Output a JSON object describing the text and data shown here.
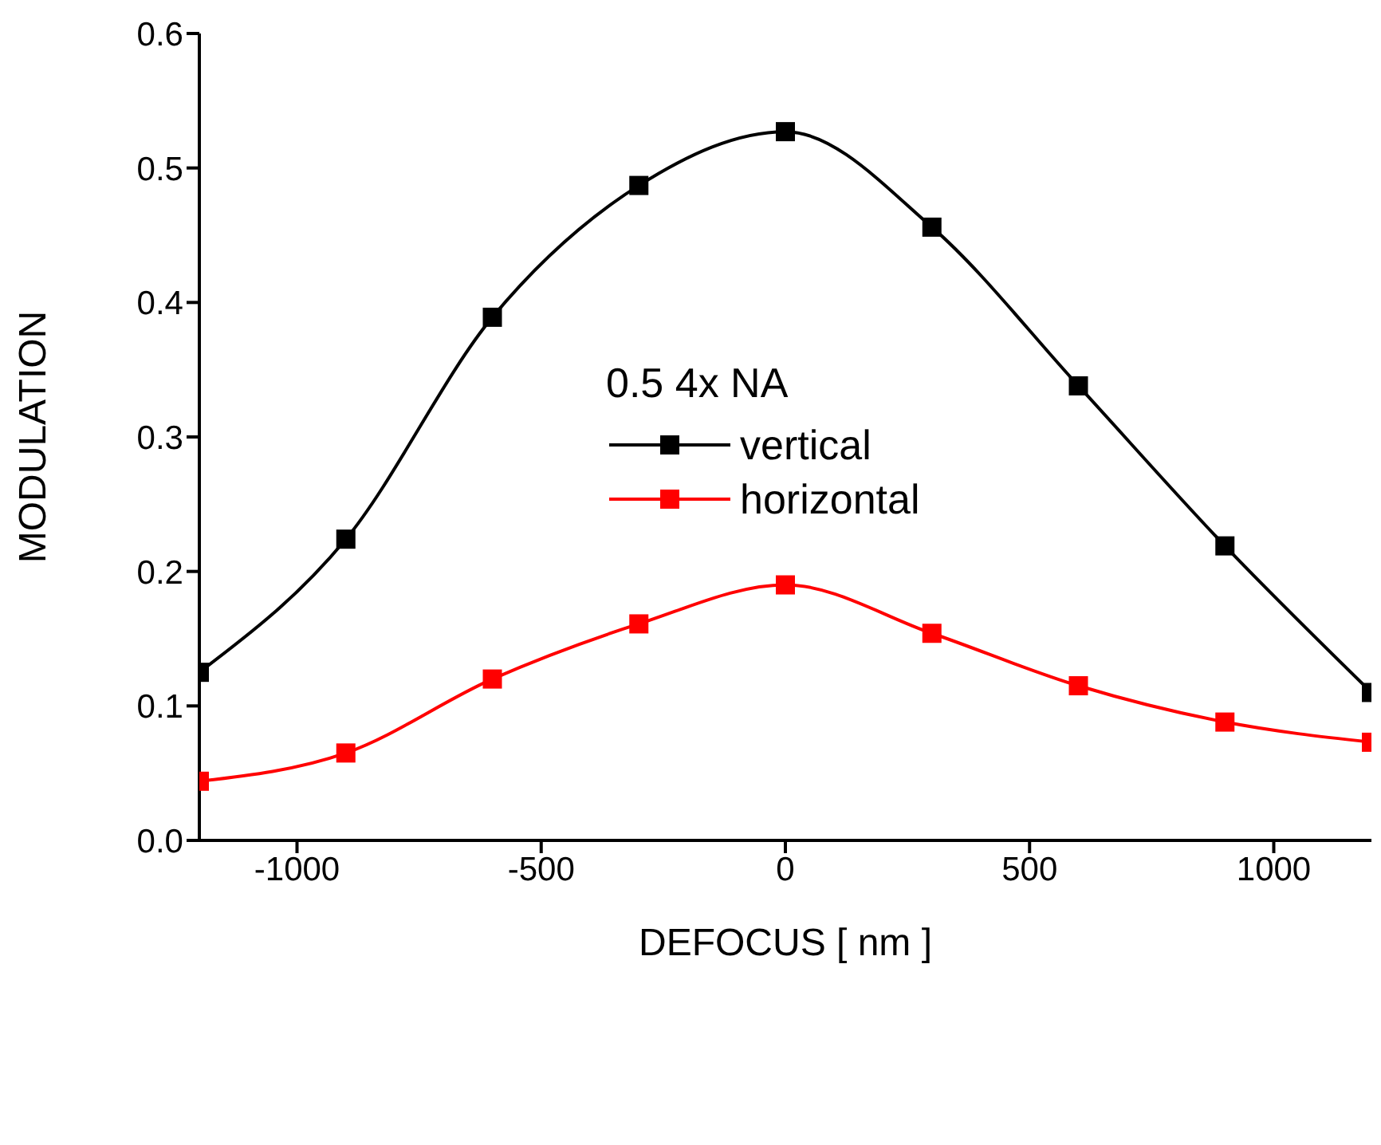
{
  "chart_data": {
    "type": "line",
    "xlabel": "DEFOCUS [ nm ]",
    "ylabel": "MODULATION",
    "legend_title": "0.5 4x NA",
    "x": [
      -1200,
      -900,
      -600,
      -300,
      0,
      300,
      600,
      900,
      1200
    ],
    "series": [
      {
        "name": "vertical",
        "color": "#000000",
        "values": [
          0.125,
          0.224,
          0.389,
          0.487,
          0.527,
          0.456,
          0.338,
          0.219,
          0.11
        ]
      },
      {
        "name": "horizontal",
        "color": "#ff0000",
        "values": [
          0.044,
          0.065,
          0.12,
          0.161,
          0.19,
          0.154,
          0.115,
          0.088,
          0.073
        ]
      }
    ],
    "xlim": [
      -1200,
      1200
    ],
    "xticks": [
      -1000,
      -500,
      0,
      500,
      1000
    ],
    "ylim": [
      0,
      0.6
    ],
    "yticks": [
      {
        "value": 0,
        "label": "0.0"
      },
      {
        "value": 0.1,
        "label": "0.1"
      },
      {
        "value": 0.2,
        "label": "0.2"
      },
      {
        "value": 0.3,
        "label": "0.3"
      },
      {
        "value": 0.4,
        "label": "0.4"
      },
      {
        "value": 0.5,
        "label": "0.5"
      },
      {
        "value": 0.6,
        "label": "0.6"
      }
    ],
    "marker": "square",
    "line_style": "solid",
    "grid": false,
    "legend": "center"
  }
}
